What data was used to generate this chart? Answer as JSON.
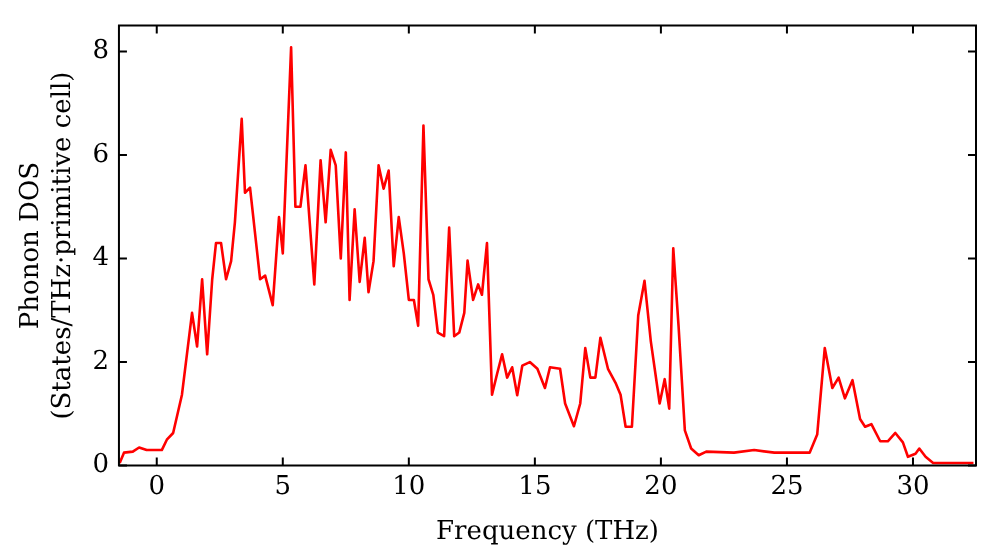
{
  "chart_data": {
    "type": "line",
    "xlabel": "Frequency (THz)",
    "ylabel": "Phonon DOS\n(States/THz·primitive cell)",
    "xlim": [
      -1.5,
      32.5
    ],
    "ylim": [
      0,
      8.5
    ],
    "xticks": [
      0,
      5,
      10,
      15,
      20,
      25,
      30
    ],
    "yticks": [
      0,
      2,
      4,
      6,
      8
    ],
    "grid": false,
    "legend": false,
    "marker": "none",
    "line_style": "solid",
    "series": [
      {
        "color": "#ff0000",
        "x": [
          -1.47,
          -1.3,
          -0.95,
          -0.7,
          -0.4,
          0.2,
          0.4,
          0.65,
          1.0,
          1.4,
          1.6,
          1.8,
          2.0,
          2.2,
          2.35,
          2.55,
          2.75,
          2.95,
          3.1,
          3.37,
          3.5,
          3.7,
          4.1,
          4.3,
          4.6,
          4.85,
          5.0,
          5.33,
          5.5,
          5.7,
          5.9,
          6.25,
          6.5,
          6.7,
          6.9,
          7.1,
          7.3,
          7.5,
          7.65,
          7.85,
          8.05,
          8.25,
          8.4,
          8.6,
          8.8,
          9.0,
          9.2,
          9.4,
          9.6,
          9.8,
          10.0,
          10.2,
          10.37,
          10.58,
          10.78,
          10.97,
          11.15,
          11.4,
          11.6,
          11.8,
          12.0,
          12.2,
          12.33,
          12.55,
          12.75,
          12.9,
          13.1,
          13.3,
          13.5,
          13.7,
          13.9,
          14.1,
          14.3,
          14.5,
          14.8,
          15.1,
          15.4,
          15.6,
          16.0,
          16.2,
          16.55,
          16.8,
          17.0,
          17.2,
          17.4,
          17.6,
          17.9,
          18.2,
          18.4,
          18.6,
          18.85,
          19.1,
          19.35,
          19.6,
          19.95,
          20.15,
          20.33,
          20.49,
          20.7,
          20.95,
          21.2,
          21.5,
          21.8,
          22.9,
          23.7,
          24.5,
          25.9,
          26.2,
          26.5,
          26.8,
          27.05,
          27.3,
          27.6,
          27.9,
          28.1,
          28.35,
          28.7,
          29.0,
          29.3,
          29.6,
          29.8,
          30.1,
          30.25,
          30.5,
          30.8,
          32.4
        ],
        "values": [
          0.05,
          0.25,
          0.27,
          0.35,
          0.3,
          0.3,
          0.5,
          0.63,
          1.37,
          2.95,
          2.3,
          3.6,
          2.15,
          3.6,
          4.3,
          4.3,
          3.6,
          3.95,
          4.7,
          6.7,
          5.27,
          5.37,
          3.6,
          3.67,
          3.1,
          4.8,
          4.1,
          8.08,
          5.0,
          5.0,
          5.8,
          3.5,
          5.9,
          4.7,
          6.1,
          5.8,
          4.0,
          6.05,
          3.2,
          4.95,
          3.55,
          4.4,
          3.35,
          3.95,
          5.8,
          5.35,
          5.7,
          3.85,
          4.8,
          4.1,
          3.2,
          3.2,
          2.7,
          6.57,
          3.6,
          3.3,
          2.57,
          2.5,
          4.6,
          2.5,
          2.57,
          2.95,
          3.96,
          3.2,
          3.5,
          3.3,
          4.3,
          1.37,
          1.77,
          2.15,
          1.7,
          1.9,
          1.36,
          1.93,
          2.0,
          1.87,
          1.5,
          1.9,
          1.87,
          1.2,
          0.76,
          1.2,
          2.27,
          1.7,
          1.7,
          2.47,
          1.87,
          1.6,
          1.37,
          0.75,
          0.75,
          2.9,
          3.57,
          2.4,
          1.2,
          1.67,
          1.1,
          4.2,
          2.7,
          0.68,
          0.33,
          0.2,
          0.27,
          0.25,
          0.3,
          0.25,
          0.25,
          0.6,
          2.27,
          1.5,
          1.7,
          1.3,
          1.65,
          0.9,
          0.75,
          0.8,
          0.47,
          0.47,
          0.63,
          0.45,
          0.17,
          0.23,
          0.33,
          0.17,
          0.05,
          0.05
        ]
      }
    ]
  }
}
